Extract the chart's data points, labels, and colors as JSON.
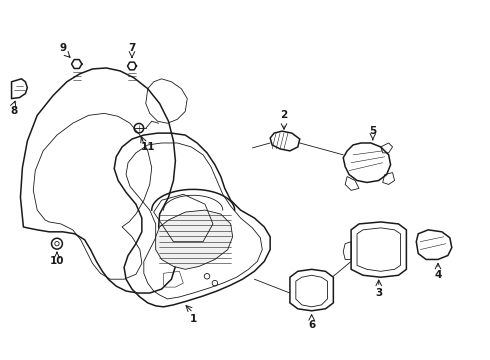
{
  "bg_color": "#ffffff",
  "line_color": "#1a1a1a",
  "fig_width": 4.9,
  "fig_height": 3.6,
  "dpi": 100,
  "lw_main": 1.1,
  "lw_thin": 0.6,
  "lw_detail": 0.4
}
